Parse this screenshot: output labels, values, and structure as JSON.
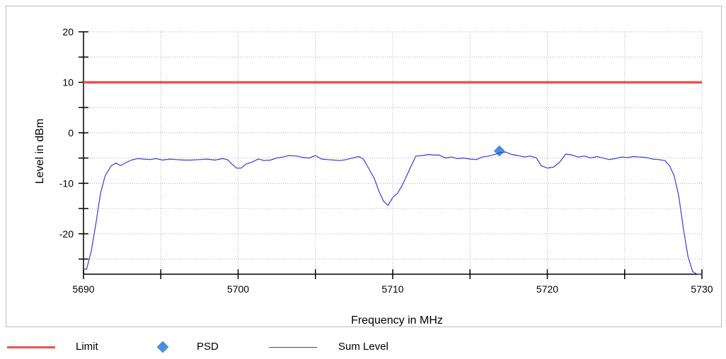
{
  "chart_data": {
    "type": "line",
    "title": "",
    "xlabel": "Frequency in MHz",
    "ylabel": "Level in dBm",
    "xlim": [
      5690,
      5730
    ],
    "ylim": [
      -28,
      20
    ],
    "x_ticks": [
      5690,
      5700,
      5710,
      5720,
      5730
    ],
    "y_ticks": [
      -20,
      -10,
      0,
      10,
      20
    ],
    "grid": true,
    "legend_position": "bottom-left",
    "series": [
      {
        "name": "Limit",
        "kind": "line",
        "color": "#f05050",
        "x": [
          5690,
          5730
        ],
        "y": [
          10,
          10
        ]
      },
      {
        "name": "PSD",
        "kind": "marker",
        "color": "#4a90d9",
        "x": [
          5716.9
        ],
        "y": [
          -3.6
        ]
      },
      {
        "name": "Sum Level",
        "kind": "line",
        "color": "#3a3ad8",
        "x": [
          5690,
          5690.2,
          5690.5,
          5690.8,
          5691.1,
          5691.4,
          5691.8,
          5692.1,
          5692.4,
          5692.8,
          5693.1,
          5693.5,
          5693.9,
          5694.3,
          5694.7,
          5695.1,
          5695.6,
          5696,
          5696.5,
          5697,
          5697.5,
          5698,
          5698.5,
          5699,
          5699.3,
          5699.6,
          5699.9,
          5700.2,
          5700.5,
          5700.9,
          5701.3,
          5701.7,
          5702.1,
          5702.5,
          5702.9,
          5703.3,
          5703.8,
          5704.2,
          5704.6,
          5705,
          5705.4,
          5705.8,
          5706.2,
          5706.6,
          5707,
          5707.4,
          5707.8,
          5708.1,
          5708.4,
          5708.8,
          5709.1,
          5709.4,
          5709.7,
          5710,
          5710.3,
          5710.6,
          5710.9,
          5711.2,
          5711.5,
          5711.9,
          5712.3,
          5712.6,
          5713,
          5713.4,
          5713.8,
          5714.2,
          5714.6,
          5715,
          5715.4,
          5715.8,
          5716.2,
          5716.6,
          5716.9,
          5717.3,
          5717.7,
          5718.1,
          5718.5,
          5718.9,
          5719.3,
          5719.6,
          5720,
          5720.4,
          5720.8,
          5721.2,
          5721.6,
          5722,
          5722.4,
          5722.8,
          5723.2,
          5723.6,
          5724,
          5724.4,
          5724.8,
          5725.2,
          5725.6,
          5726,
          5726.4,
          5726.8,
          5727.2,
          5727.6,
          5727.9,
          5728.2,
          5728.5,
          5728.8,
          5729.1,
          5729.4,
          5729.7,
          5730
        ],
        "y": [
          -27,
          -27,
          -23.5,
          -18,
          -12,
          -8.5,
          -6.5,
          -6,
          -6.5,
          -5.8,
          -5.4,
          -5.1,
          -5.2,
          -5.3,
          -5.1,
          -5.4,
          -5.2,
          -5.3,
          -5.4,
          -5.4,
          -5.3,
          -5.2,
          -5.4,
          -5.1,
          -5.3,
          -6.2,
          -7,
          -7,
          -6.2,
          -5.8,
          -5.2,
          -5.5,
          -5.4,
          -5,
          -4.8,
          -4.5,
          -4.6,
          -4.9,
          -5,
          -4.5,
          -5.2,
          -5.3,
          -5.4,
          -5.5,
          -5.3,
          -5,
          -4.7,
          -5.2,
          -6.8,
          -9,
          -11.5,
          -13.5,
          -14.4,
          -12.8,
          -12,
          -10.5,
          -8.5,
          -6.5,
          -4.6,
          -4.5,
          -4.3,
          -4.4,
          -4.4,
          -5,
          -4.8,
          -5.1,
          -5,
          -5.2,
          -5.3,
          -4.8,
          -4.6,
          -4.3,
          -4,
          -3.8,
          -4.3,
          -4.5,
          -4.8,
          -4.6,
          -5,
          -6.5,
          -7,
          -6.8,
          -5.8,
          -4.2,
          -4.4,
          -4.8,
          -4.6,
          -5,
          -4.7,
          -5,
          -5.3,
          -5.1,
          -4.8,
          -4.9,
          -4.7,
          -4.8,
          -4.9,
          -5.2,
          -5.3,
          -5.5,
          -6.5,
          -8.5,
          -12.5,
          -19,
          -24.5,
          -27.5,
          -28,
          -28
        ]
      }
    ]
  },
  "legend": {
    "items": [
      {
        "label": "Limit"
      },
      {
        "label": "PSD"
      },
      {
        "label": "Sum Level"
      }
    ]
  },
  "colors": {
    "limit": "#f05050",
    "psd": "#4a90d9",
    "sum_level": "#3a3ad8",
    "grid": "#b0b0b0",
    "axis": "#000000"
  }
}
